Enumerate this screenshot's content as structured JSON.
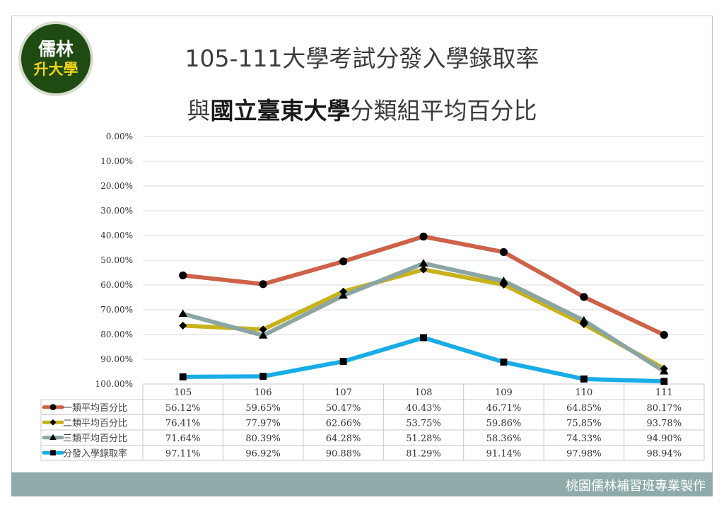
{
  "header": {
    "logo_line1": "儒林",
    "logo_line2": "升大學",
    "title_line1": "105-111大學考試分發入學錄取率",
    "title_line2_prefix": "與",
    "title_line2_bold": "國立臺東大學",
    "title_line2_suffix": "分類組平均百分比"
  },
  "footer": {
    "credit": "桃園儒林補習班專業製作"
  },
  "colors": {
    "frame_border": "#b9c4c4",
    "footer_bg": "#8eabaa",
    "logo_bg": "#1f4a12",
    "logo_accent": "#f2d21a"
  },
  "chart_data": {
    "type": "line",
    "reversed_y": true,
    "ylim": [
      0,
      100
    ],
    "y_ticks": [
      "0.00%",
      "10.00%",
      "20.00%",
      "30.00%",
      "40.00%",
      "50.00%",
      "60.00%",
      "70.00%",
      "80.00%",
      "90.00%",
      "100.00%"
    ],
    "categories": [
      "105",
      "106",
      "107",
      "108",
      "109",
      "110",
      "111"
    ],
    "grid": true,
    "legend": "data-table",
    "series": [
      {
        "name": "一類平均百分比",
        "color": "#cd6248",
        "marker": "circle",
        "values": [
          56.12,
          59.65,
          50.47,
          40.43,
          46.71,
          64.85,
          80.17
        ],
        "labels": [
          "56.12%",
          "59.65%",
          "50.47%",
          "40.43%",
          "46.71%",
          "64.85%",
          "80.17%"
        ]
      },
      {
        "name": "二類平均百分比",
        "color": "#c8b21c",
        "marker": "diamond",
        "values": [
          76.41,
          77.97,
          62.66,
          53.75,
          59.86,
          75.85,
          93.78
        ],
        "labels": [
          "76.41%",
          "77.97%",
          "62.66%",
          "53.75%",
          "59.86%",
          "75.85%",
          "93.78%"
        ]
      },
      {
        "name": "三類平均百分比",
        "color": "#8aa5a4",
        "marker": "triangle",
        "values": [
          71.64,
          80.39,
          64.28,
          51.28,
          58.36,
          74.33,
          94.9
        ],
        "labels": [
          "71.64%",
          "80.39%",
          "64.28%",
          "51.28%",
          "58.36%",
          "74.33%",
          "94.90%"
        ]
      },
      {
        "name": "分發入學錄取率",
        "color": "#19ade6",
        "marker": "square",
        "values": [
          97.11,
          96.92,
          90.88,
          81.29,
          91.14,
          97.98,
          98.94
        ],
        "labels": [
          "97.11%",
          "96.92%",
          "90.88%",
          "81.29%",
          "91.14%",
          "97.98%",
          "98.94%"
        ]
      }
    ]
  }
}
